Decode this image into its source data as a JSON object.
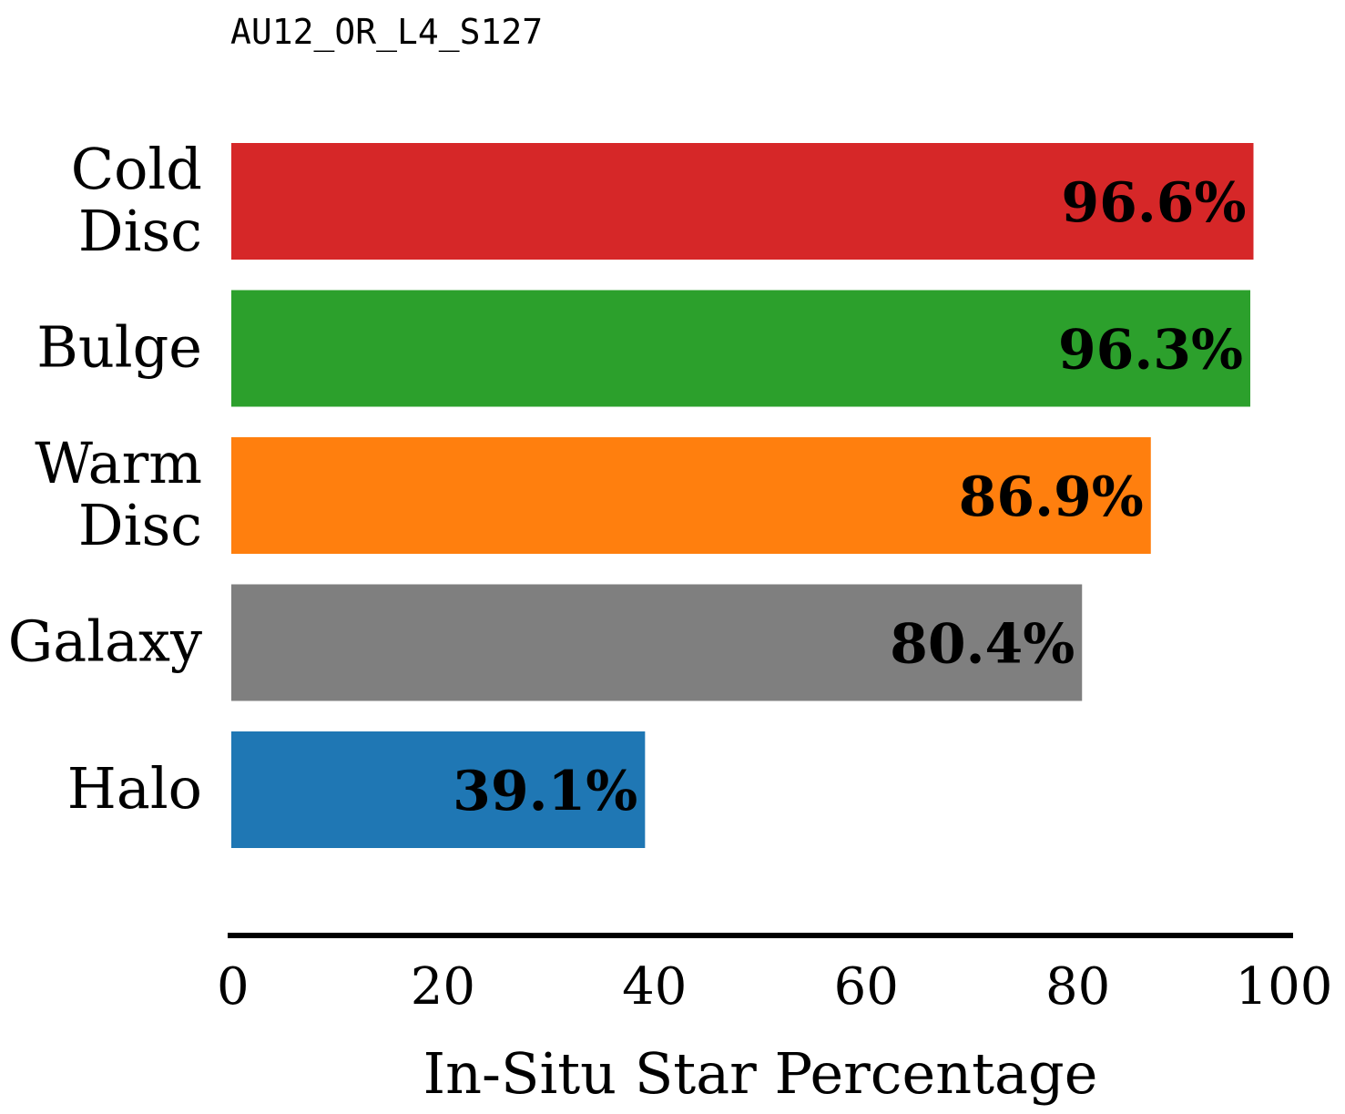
{
  "chart_data": {
    "type": "bar",
    "orientation": "horizontal",
    "title": "AU12_OR_L4_S127",
    "xlabel": "In-Situ Star Percentage",
    "ylabel": "",
    "xlim": [
      0,
      100
    ],
    "xticks": [
      0,
      20,
      40,
      60,
      80,
      100
    ],
    "grid": false,
    "categories": [
      [
        "Cold",
        "Disc"
      ],
      [
        "Bulge"
      ],
      [
        "Warm",
        "Disc"
      ],
      [
        "Galaxy"
      ],
      [
        "Halo"
      ]
    ],
    "values": [
      96.6,
      96.3,
      86.9,
      80.4,
      39.1
    ],
    "value_labels": [
      "96.6%",
      "96.3%",
      "86.9%",
      "80.4%",
      "39.1%"
    ],
    "colors": [
      "#d62728",
      "#2ca02c",
      "#ff7f0e",
      "#7f7f7f",
      "#1f77b4"
    ]
  }
}
